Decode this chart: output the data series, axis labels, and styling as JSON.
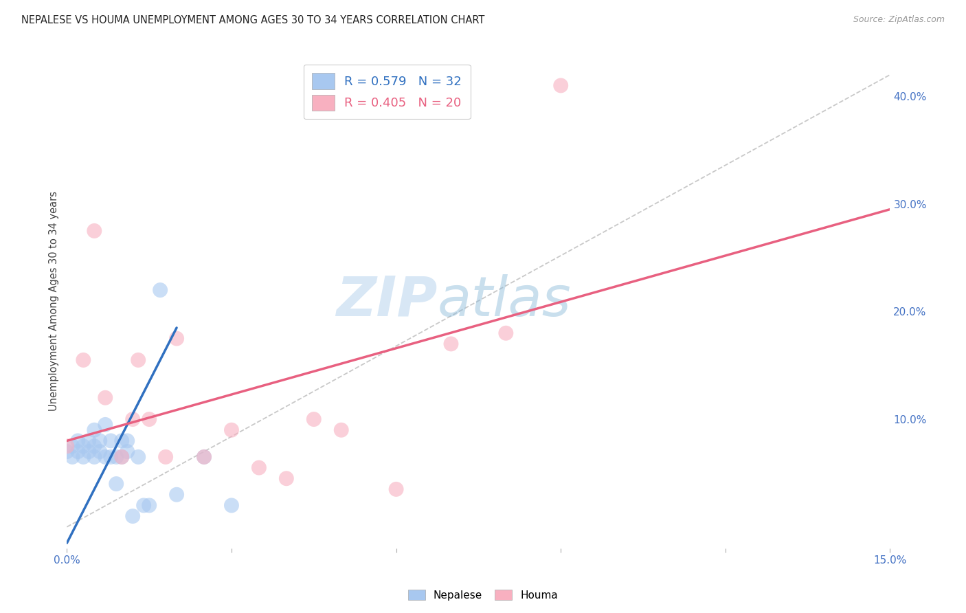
{
  "title": "NEPALESE VS HOUMA UNEMPLOYMENT AMONG AGES 30 TO 34 YEARS CORRELATION CHART",
  "source": "Source: ZipAtlas.com",
  "ylabel": "Unemployment Among Ages 30 to 34 years",
  "xlim": [
    0.0,
    0.15
  ],
  "ylim": [
    -0.02,
    0.44
  ],
  "xticks": [
    0.0,
    0.03,
    0.06,
    0.09,
    0.12,
    0.15
  ],
  "xtick_labels": [
    "0.0%",
    "",
    "",
    "",
    "",
    "15.0%"
  ],
  "yticks_right": [
    0.0,
    0.1,
    0.2,
    0.3,
    0.4
  ],
  "ytick_labels_right": [
    "",
    "10.0%",
    "20.0%",
    "30.0%",
    "40.0%"
  ],
  "nepalese_R": 0.579,
  "nepalese_N": 32,
  "houma_R": 0.405,
  "houma_N": 20,
  "nepalese_color": "#a8c8f0",
  "houma_color": "#f8b0c0",
  "nepalese_line_color": "#3070c0",
  "houma_line_color": "#e86080",
  "reference_line_color": "#bbbbbb",
  "background_color": "#ffffff",
  "grid_color": "#dddddd",
  "watermark_zip": "ZIP",
  "watermark_atlas": "atlas",
  "nepalese_x": [
    0.0,
    0.001,
    0.001,
    0.002,
    0.002,
    0.003,
    0.003,
    0.004,
    0.004,
    0.005,
    0.005,
    0.005,
    0.006,
    0.006,
    0.007,
    0.007,
    0.008,
    0.008,
    0.009,
    0.009,
    0.01,
    0.01,
    0.011,
    0.011,
    0.012,
    0.013,
    0.014,
    0.015,
    0.017,
    0.02,
    0.025,
    0.03
  ],
  "nepalese_y": [
    0.07,
    0.075,
    0.065,
    0.08,
    0.07,
    0.065,
    0.075,
    0.07,
    0.08,
    0.065,
    0.075,
    0.09,
    0.07,
    0.08,
    0.065,
    0.095,
    0.065,
    0.08,
    0.04,
    0.065,
    0.065,
    0.08,
    0.07,
    0.08,
    0.01,
    0.065,
    0.02,
    0.02,
    0.22,
    0.03,
    0.065,
    0.02
  ],
  "houma_x": [
    0.0,
    0.003,
    0.005,
    0.007,
    0.01,
    0.012,
    0.013,
    0.015,
    0.018,
    0.02,
    0.025,
    0.03,
    0.035,
    0.04,
    0.045,
    0.05,
    0.06,
    0.07,
    0.08,
    0.09
  ],
  "houma_y": [
    0.075,
    0.155,
    0.275,
    0.12,
    0.065,
    0.1,
    0.155,
    0.1,
    0.065,
    0.175,
    0.065,
    0.09,
    0.055,
    0.045,
    0.1,
    0.09,
    0.035,
    0.17,
    0.18,
    0.41
  ],
  "nepalese_trendline_x": [
    0.0,
    0.02
  ],
  "nepalese_trendline_y": [
    -0.015,
    0.185
  ],
  "houma_trendline_x": [
    0.0,
    0.15
  ],
  "houma_trendline_y": [
    0.08,
    0.295
  ],
  "ref_line_x": [
    0.0,
    0.15
  ],
  "ref_line_y": [
    0.0,
    0.42
  ]
}
